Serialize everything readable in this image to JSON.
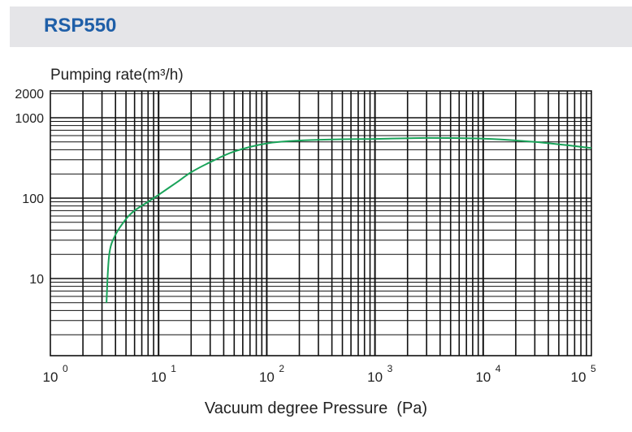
{
  "header": {
    "title": "RSP550"
  },
  "chart_data": {
    "type": "line",
    "title": "",
    "xlabel": "Vacuum degree Pressure  (Pa)",
    "ylabel": "Pumping rate(m³/h)",
    "x_scale": "log",
    "y_scale": "log",
    "xlim": [
      1,
      100000
    ],
    "ylim": [
      1,
      2000
    ],
    "grid": true,
    "legend": "none",
    "x_ticks": [
      {
        "base": "10",
        "exp": "0"
      },
      {
        "base": "10",
        "exp": "1"
      },
      {
        "base": "10",
        "exp": "2"
      },
      {
        "base": "10",
        "exp": "3"
      },
      {
        "base": "10",
        "exp": "4"
      },
      {
        "base": "10",
        "exp": "5"
      }
    ],
    "y_ticks": [
      "2000",
      "1000",
      "100",
      "10"
    ],
    "series": [
      {
        "color": "#1aa35a",
        "x": [
          3.3,
          3.5,
          4,
          5,
          6,
          8,
          10,
          15,
          20,
          30,
          50,
          100,
          200,
          500,
          1000,
          3000,
          10000,
          30000,
          100000
        ],
        "y": [
          5,
          20,
          35,
          55,
          70,
          90,
          110,
          160,
          210,
          280,
          380,
          480,
          520,
          540,
          545,
          560,
          550,
          500,
          420
        ]
      }
    ]
  }
}
